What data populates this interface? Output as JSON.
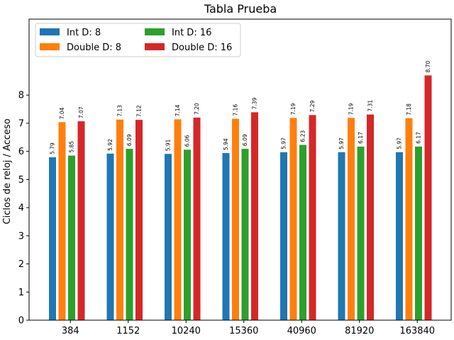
{
  "chart_data": {
    "type": "bar",
    "title": "Tabla Prueba",
    "xlabel": "",
    "ylabel": "Ciclos de reloj / Acceso",
    "ylim": [
      0,
      10.7
    ],
    "yticks": [
      "0",
      "1",
      "2",
      "3",
      "4",
      "5",
      "6",
      "7",
      "8"
    ],
    "categories": [
      "384",
      "1152",
      "10240",
      "15360",
      "40960",
      "81920",
      "163840"
    ],
    "series": [
      {
        "name": "Int D: 8",
        "color": "#1f77b4",
        "values": [
          5.79,
          5.92,
          5.91,
          5.94,
          5.97,
          5.97,
          5.97
        ]
      },
      {
        "name": "Double D: 8",
        "color": "#ff7f0e",
        "values": [
          7.04,
          7.13,
          7.14,
          7.16,
          7.19,
          7.19,
          7.18
        ]
      },
      {
        "name": "Int D: 16",
        "color": "#2ca02c",
        "values": [
          5.85,
          6.09,
          6.06,
          6.09,
          6.23,
          6.17,
          6.17
        ]
      },
      {
        "name": "Double D: 16",
        "color": "#d62728",
        "values": [
          7.07,
          7.12,
          7.2,
          7.39,
          7.29,
          7.31,
          8.7
        ]
      }
    ],
    "value_labels": [
      [
        "5.79",
        "5.92",
        "5.91",
        "5.94",
        "5.97",
        "5.97",
        "5.97"
      ],
      [
        "7.04",
        "7.13",
        "7.14",
        "7.16",
        "7.19",
        "7.19",
        "7.18"
      ],
      [
        "5.85",
        "6.09",
        "6.06",
        "6.09",
        "6.23",
        "6.17",
        "6.17"
      ],
      [
        "7.07",
        "7.12",
        "7.20",
        "7.39",
        "7.29",
        "7.31",
        "8.70"
      ]
    ],
    "grid": false,
    "legend_position": "top-left",
    "legend_columns": 2
  }
}
